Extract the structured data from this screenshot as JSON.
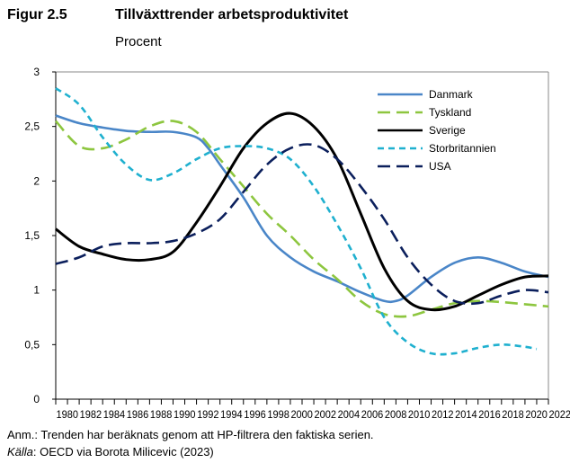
{
  "header": {
    "figure": "Figur 2.5",
    "title": "Tillväxttrender arbetsproduktivitet",
    "unit": "Procent"
  },
  "footer": {
    "note": "Anm.: Trenden har beräknats genom att HP-filtrera den faktiska serien.",
    "source_label": "Källa",
    "source_text": ": OECD via Borota Milicevic (2023)"
  },
  "chart_data": {
    "type": "line",
    "title": "Tillväxttrender arbetsproduktivitet",
    "ylabel": "Procent",
    "xlabel": "",
    "xlim": [
      1980,
      2022
    ],
    "ylim": [
      0,
      3
    ],
    "yticks": [
      "0",
      "0,5",
      "1",
      "1,5",
      "2",
      "2,5",
      "3"
    ],
    "xticks": [
      "1980",
      "1982",
      "1984",
      "1986",
      "1988",
      "1990",
      "1992",
      "1994",
      "1996",
      "1998",
      "2000",
      "2002",
      "2004",
      "2006",
      "2008",
      "2010",
      "2012",
      "2014",
      "2016",
      "2018",
      "2020",
      "2022"
    ],
    "legend": "top-right",
    "series": [
      {
        "name": "Danmark",
        "color": "#4a86c8",
        "dash": "solid",
        "x": [
          1980,
          1982,
          1984,
          1986,
          1988,
          1990,
          1992,
          1993,
          1994,
          1996,
          1998,
          2000,
          2002,
          2004,
          2006,
          2008,
          2009,
          2010,
          2012,
          2014,
          2016,
          2018,
          2020,
          2022
        ],
        "y": [
          2.6,
          2.53,
          2.49,
          2.46,
          2.45,
          2.45,
          2.4,
          2.3,
          2.15,
          1.85,
          1.5,
          1.3,
          1.17,
          1.08,
          0.98,
          0.9,
          0.9,
          0.95,
          1.12,
          1.25,
          1.3,
          1.25,
          1.17,
          1.12
        ]
      },
      {
        "name": "Tyskland",
        "color": "#8dc63f",
        "dash": "long",
        "x": [
          1980,
          1982,
          1984,
          1986,
          1988,
          1990,
          1992,
          1994,
          1996,
          1998,
          2000,
          2002,
          2004,
          2006,
          2008,
          2010,
          2012,
          2014,
          2016,
          2018,
          2020,
          2022
        ],
        "y": [
          2.55,
          2.32,
          2.3,
          2.38,
          2.5,
          2.55,
          2.45,
          2.2,
          1.95,
          1.7,
          1.5,
          1.28,
          1.1,
          0.9,
          0.78,
          0.76,
          0.82,
          0.88,
          0.9,
          0.89,
          0.87,
          0.85
        ]
      },
      {
        "name": "Sverige",
        "color": "#000000",
        "dash": "solid",
        "x": [
          1980,
          1982,
          1984,
          1986,
          1988,
          1990,
          1992,
          1994,
          1996,
          1998,
          2000,
          2002,
          2004,
          2006,
          2008,
          2010,
          2012,
          2014,
          2016,
          2018,
          2020,
          2022
        ],
        "y": [
          1.56,
          1.4,
          1.33,
          1.28,
          1.28,
          1.35,
          1.62,
          1.95,
          2.3,
          2.53,
          2.62,
          2.5,
          2.2,
          1.7,
          1.2,
          0.9,
          0.82,
          0.85,
          0.95,
          1.05,
          1.12,
          1.13
        ]
      },
      {
        "name": "Storbritannien",
        "color": "#1fb0cf",
        "dash": "short",
        "x": [
          1980,
          1982,
          1984,
          1986,
          1988,
          1990,
          1992,
          1994,
          1996,
          1998,
          2000,
          2002,
          2004,
          2006,
          2008,
          2010,
          2012,
          2014,
          2016,
          2018,
          2020,
          2021
        ],
        "y": [
          2.85,
          2.7,
          2.4,
          2.15,
          2.01,
          2.07,
          2.2,
          2.3,
          2.32,
          2.3,
          2.2,
          1.95,
          1.6,
          1.2,
          0.75,
          0.52,
          0.42,
          0.42,
          0.47,
          0.5,
          0.48,
          0.46
        ]
      },
      {
        "name": "USA",
        "color": "#0b1f5c",
        "dash": "long",
        "x": [
          1980,
          1982,
          1984,
          1986,
          1988,
          1990,
          1992,
          1994,
          1996,
          1998,
          2000,
          2002,
          2004,
          2006,
          2008,
          2010,
          2012,
          2014,
          2016,
          2018,
          2020,
          2022
        ],
        "y": [
          1.24,
          1.3,
          1.4,
          1.43,
          1.43,
          1.45,
          1.52,
          1.65,
          1.9,
          2.15,
          2.3,
          2.33,
          2.2,
          1.95,
          1.65,
          1.3,
          1.05,
          0.9,
          0.88,
          0.95,
          1.0,
          0.98
        ]
      }
    ]
  }
}
